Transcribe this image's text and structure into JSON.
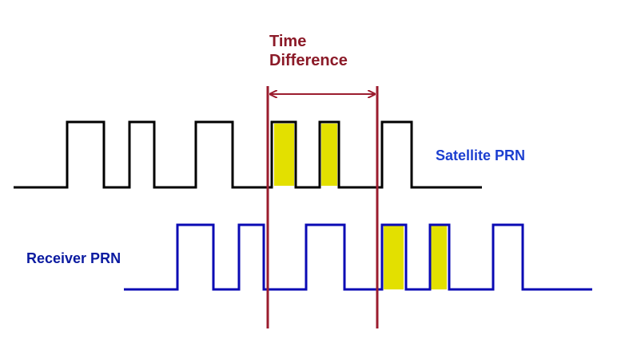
{
  "colors": {
    "satellite_signal": "#000000",
    "receiver_signal": "#0a0ab4",
    "time_marker": "#9b1c2e",
    "highlight": "#e3e000",
    "satellite_label": "#1c3fd0",
    "receiver_label": "#0a1aa0",
    "time_label": "#8b1a28",
    "background": "#ffffff"
  },
  "labels": {
    "time_difference_line1": "Time",
    "time_difference_line2": "Difference",
    "satellite": "Satellite PRN",
    "receiver": "Receiver PRN"
  }
}
